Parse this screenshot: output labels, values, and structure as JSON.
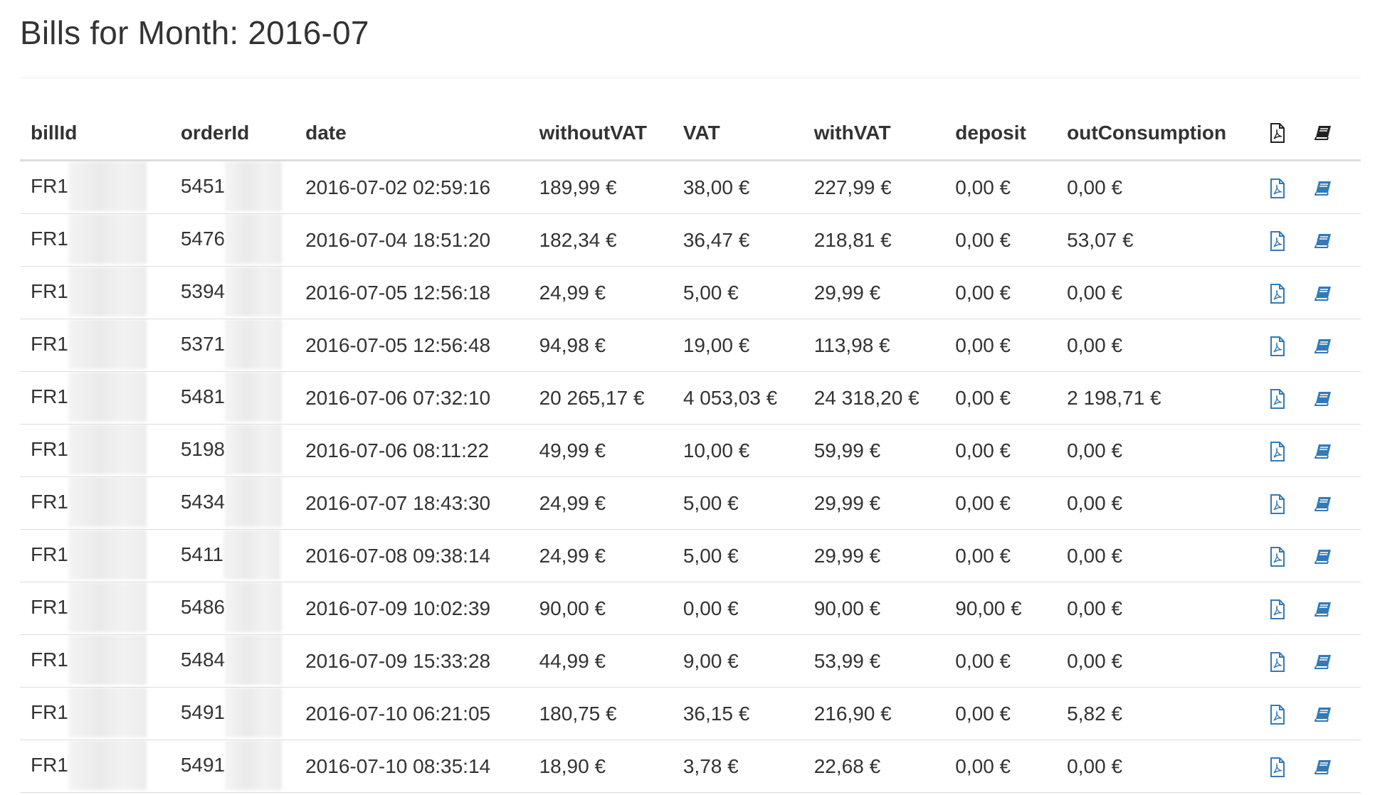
{
  "page": {
    "title": "Bills for Month: 2016-07"
  },
  "table": {
    "headers": {
      "billId": "billId",
      "orderId": "orderId",
      "date": "date",
      "withoutVAT": "withoutVAT",
      "VAT": "VAT",
      "withVAT": "withVAT",
      "deposit": "deposit",
      "outConsumption": "outConsumption",
      "pdf_icon": "pdf-file-icon",
      "book_icon": "book-icon"
    },
    "rows": [
      {
        "billId": "FR1",
        "orderId": "5451",
        "date": "2016-07-02 02:59:16",
        "withoutVAT": "189,99 €",
        "VAT": "38,00 €",
        "withVAT": "227,99 €",
        "deposit": "0,00 €",
        "outConsumption": "0,00 €"
      },
      {
        "billId": "FR1",
        "orderId": "5476",
        "date": "2016-07-04 18:51:20",
        "withoutVAT": "182,34 €",
        "VAT": "36,47 €",
        "withVAT": "218,81 €",
        "deposit": "0,00 €",
        "outConsumption": "53,07 €"
      },
      {
        "billId": "FR1",
        "orderId": "5394",
        "date": "2016-07-05 12:56:18",
        "withoutVAT": "24,99 €",
        "VAT": "5,00 €",
        "withVAT": "29,99 €",
        "deposit": "0,00 €",
        "outConsumption": "0,00 €"
      },
      {
        "billId": "FR1",
        "orderId": "5371",
        "date": "2016-07-05 12:56:48",
        "withoutVAT": "94,98 €",
        "VAT": "19,00 €",
        "withVAT": "113,98 €",
        "deposit": "0,00 €",
        "outConsumption": "0,00 €"
      },
      {
        "billId": "FR1",
        "orderId": "5481",
        "date": "2016-07-06 07:32:10",
        "withoutVAT": "20 265,17 €",
        "VAT": "4 053,03 €",
        "withVAT": "24 318,20 €",
        "deposit": "0,00 €",
        "outConsumption": "2 198,71 €"
      },
      {
        "billId": "FR1",
        "orderId": "5198",
        "date": "2016-07-06 08:11:22",
        "withoutVAT": "49,99 €",
        "VAT": "10,00 €",
        "withVAT": "59,99 €",
        "deposit": "0,00 €",
        "outConsumption": "0,00 €"
      },
      {
        "billId": "FR1",
        "orderId": "5434",
        "date": "2016-07-07 18:43:30",
        "withoutVAT": "24,99 €",
        "VAT": "5,00 €",
        "withVAT": "29,99 €",
        "deposit": "0,00 €",
        "outConsumption": "0,00 €"
      },
      {
        "billId": "FR1",
        "orderId": "5411",
        "date": "2016-07-08 09:38:14",
        "withoutVAT": "24,99 €",
        "VAT": "5,00 €",
        "withVAT": "29,99 €",
        "deposit": "0,00 €",
        "outConsumption": "0,00 €"
      },
      {
        "billId": "FR1",
        "orderId": "5486",
        "date": "2016-07-09 10:02:39",
        "withoutVAT": "90,00 €",
        "VAT": "0,00 €",
        "withVAT": "90,00 €",
        "deposit": "90,00 €",
        "outConsumption": "0,00 €"
      },
      {
        "billId": "FR1",
        "orderId": "5484",
        "date": "2016-07-09 15:33:28",
        "withoutVAT": "44,99 €",
        "VAT": "9,00 €",
        "withVAT": "53,99 €",
        "deposit": "0,00 €",
        "outConsumption": "0,00 €"
      },
      {
        "billId": "FR1",
        "orderId": "5491",
        "date": "2016-07-10 06:21:05",
        "withoutVAT": "180,75 €",
        "VAT": "36,15 €",
        "withVAT": "216,90 €",
        "deposit": "0,00 €",
        "outConsumption": "5,82 €"
      },
      {
        "billId": "FR1",
        "orderId": "5491",
        "date": "2016-07-10 08:35:14",
        "withoutVAT": "18,90 €",
        "VAT": "3,78 €",
        "withVAT": "22,68 €",
        "deposit": "0,00 €",
        "outConsumption": "0,00 €"
      }
    ],
    "row_icons": {
      "pdf": "pdf-file-icon",
      "book": "book-icon"
    }
  },
  "colors": {
    "text": "#333333",
    "border": "#dddddd",
    "link": "#337ab7",
    "header_icon": "#222222"
  }
}
